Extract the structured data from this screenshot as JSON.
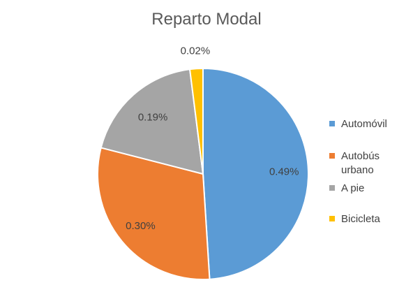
{
  "chart_data": {
    "type": "pie",
    "title": "Reparto Modal",
    "categories": [
      "Automóvil",
      "Autobús urbano",
      "A pie",
      "Bicicleta"
    ],
    "values": [
      0.49,
      0.3,
      0.19,
      0.02
    ],
    "data_labels": [
      "0.49%",
      "0.30%",
      "0.19%",
      "0.02%"
    ],
    "colors": [
      "#5B9BD5",
      "#ED7D31",
      "#A5A5A5",
      "#FFC000"
    ],
    "legend_position": "right",
    "start_angle": "12 o'clock, clockwise"
  }
}
